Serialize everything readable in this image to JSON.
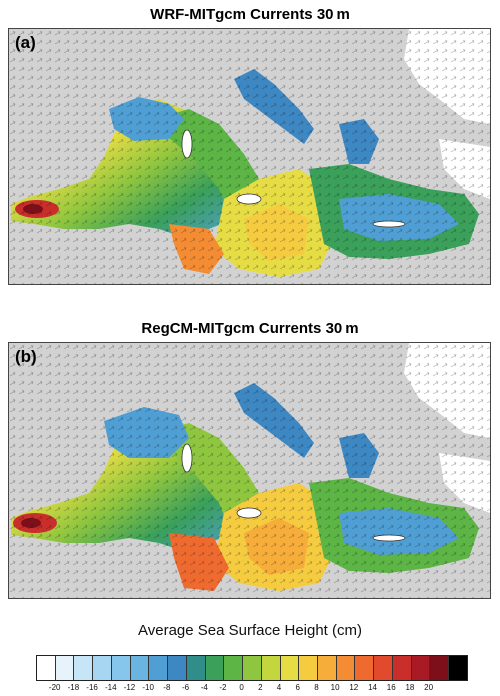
{
  "panels": [
    {
      "title": "WRF-MITgcm Currents 30 m",
      "label": "(a)"
    },
    {
      "title": "RegCM-MITgcm Currents 30 m",
      "label": "(b)"
    }
  ],
  "colorbar": {
    "title": "Average Sea Surface Height (cm)",
    "tick_labels": [
      "-20",
      "-18",
      "-16",
      "-14",
      "-12",
      "-10",
      "-8",
      "-6",
      "-4",
      "-2",
      "0",
      "2",
      "4",
      "6",
      "8",
      "10",
      "12",
      "14",
      "16",
      "18",
      "20"
    ],
    "colors": [
      "#ffffff",
      "#e6f3fb",
      "#c6e6f7",
      "#a6d6f2",
      "#86c6ec",
      "#6ab4e2",
      "#4f9fd4",
      "#3d87c3",
      "#2f8e8a",
      "#3aa05a",
      "#5cb545",
      "#8fc63f",
      "#c4d63e",
      "#e6dd45",
      "#f5cc40",
      "#f7ad3a",
      "#f48c33",
      "#ef6a2f",
      "#e24a2d",
      "#c92e2a",
      "#a81a24",
      "#7d0f1b",
      "#000000"
    ]
  },
  "map": {
    "land_color": "#d2d2d2",
    "cold_color": "#4f9fd4",
    "warm_color": "#e24a2d"
  }
}
